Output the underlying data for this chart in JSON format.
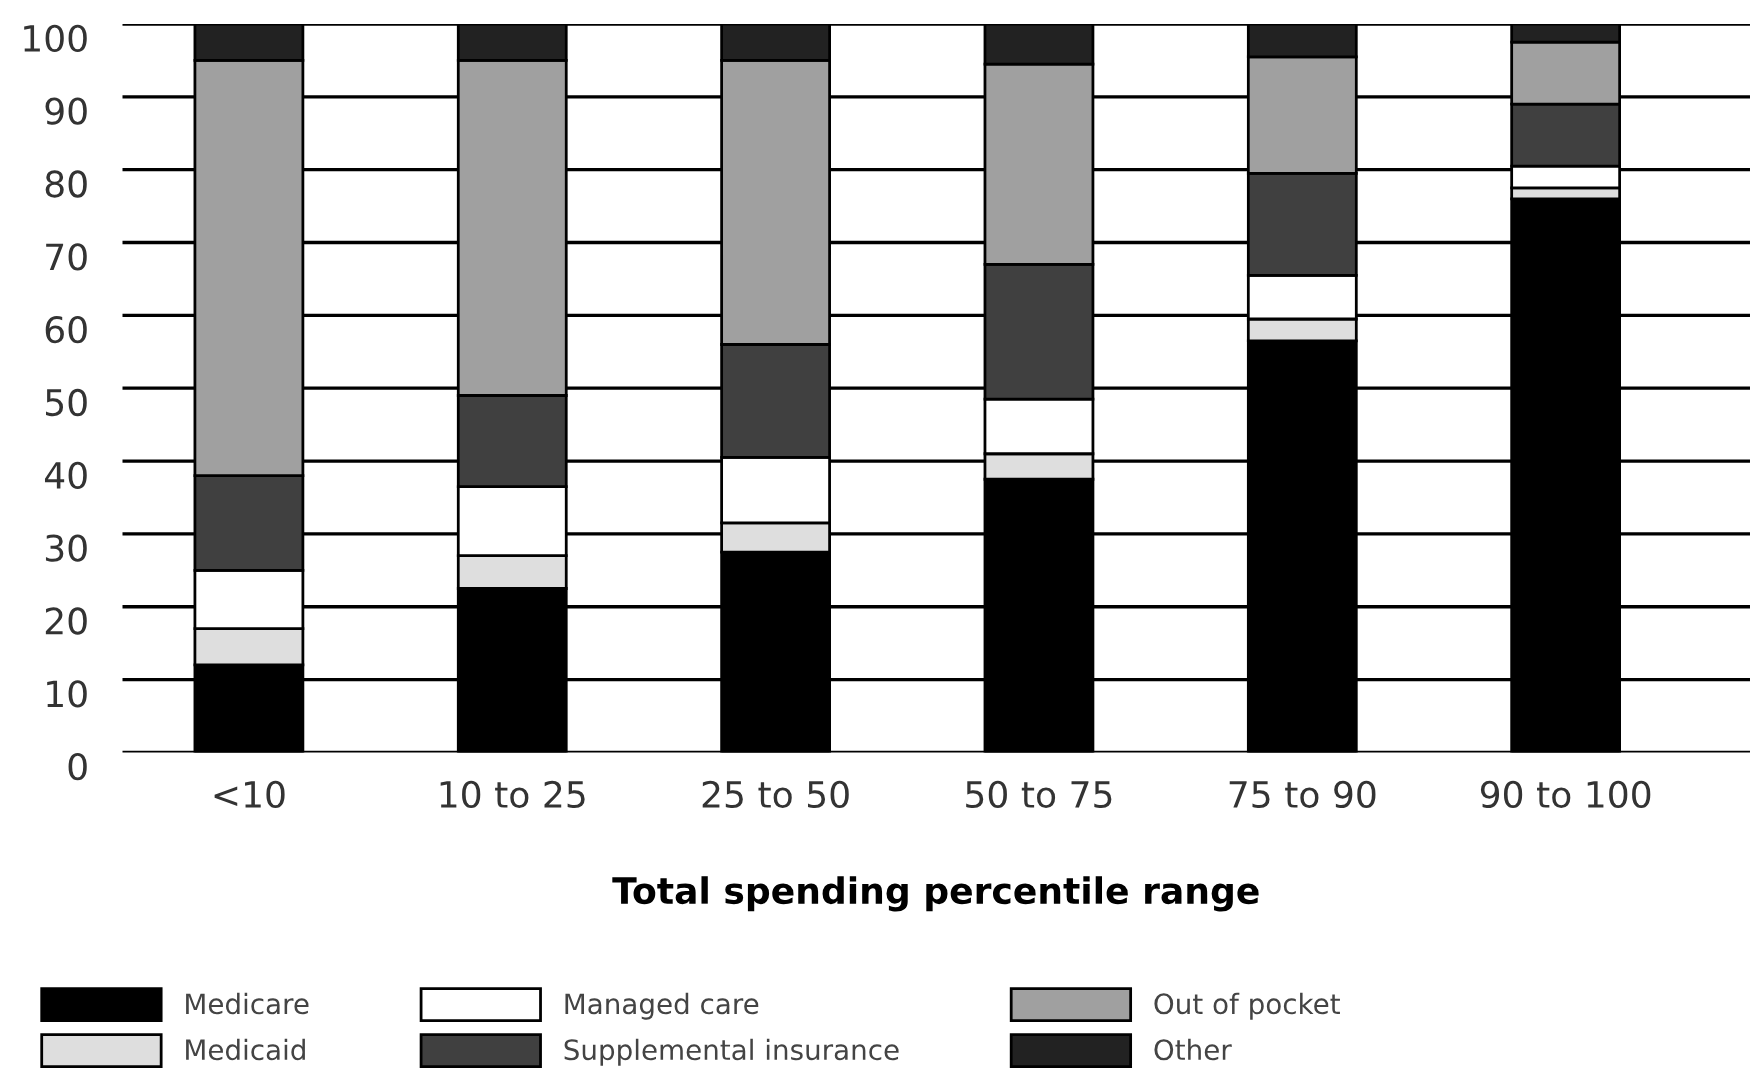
{
  "chart_data": {
    "type": "bar",
    "stacked": true,
    "xlabel": "Total spending percentile range",
    "categories": [
      "<10",
      "10 to 25",
      "25 to 50",
      "50 to 75",
      "75 to 90",
      "90 to 100"
    ],
    "series": [
      {
        "name": "Medicare",
        "color": "#000000",
        "values": [
          12,
          22.5,
          27.5,
          37.5,
          56.5,
          76
        ]
      },
      {
        "name": "Medicaid",
        "color": "#dedede",
        "values": [
          5,
          4.5,
          4,
          3.5,
          3,
          1.5
        ]
      },
      {
        "name": "Managed care",
        "color": "#ffffff",
        "values": [
          8,
          9.5,
          9,
          7.5,
          6,
          3
        ]
      },
      {
        "name": "Supplemental insurance",
        "color": "#404040",
        "values": [
          13,
          12.5,
          15.5,
          18.5,
          14,
          8.5
        ]
      },
      {
        "name": "Out of pocket",
        "color": "#a0a0a0",
        "values": [
          57,
          46,
          39,
          27.5,
          16,
          8.5
        ]
      },
      {
        "name": "Other",
        "color": "#222222",
        "values": [
          5,
          5,
          5,
          5.5,
          4.5,
          2.5
        ]
      }
    ],
    "ylim": [
      0,
      100
    ],
    "yticks": [
      0,
      10,
      20,
      30,
      40,
      50,
      60,
      70,
      80,
      90,
      100
    ],
    "grid": "y",
    "legend": "bottom"
  }
}
